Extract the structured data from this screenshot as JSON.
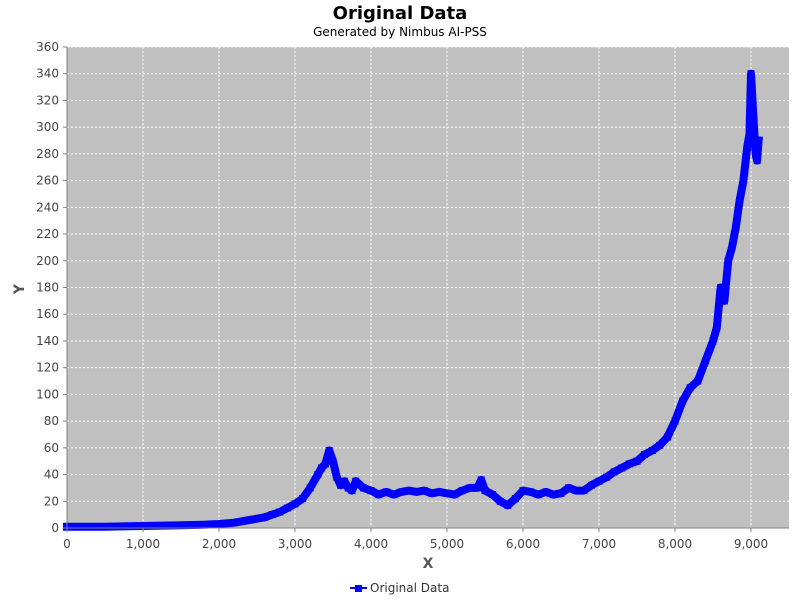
{
  "chart_data": {
    "type": "line",
    "title": "Original Data",
    "subtitle": "Generated by Nimbus AI-PSS",
    "xlabel": "X",
    "ylabel": "Y",
    "xlim": [
      0,
      9500
    ],
    "ylim": [
      0,
      360
    ],
    "x_ticks": [
      0,
      1000,
      2000,
      3000,
      4000,
      5000,
      6000,
      7000,
      8000,
      9000
    ],
    "x_tick_labels": [
      "0",
      "1,000",
      "2,000",
      "3,000",
      "4,000",
      "5,000",
      "6,000",
      "7,000",
      "8,000",
      "9,000"
    ],
    "y_ticks": [
      0,
      20,
      40,
      60,
      80,
      100,
      120,
      140,
      160,
      180,
      200,
      220,
      240,
      260,
      280,
      300,
      320,
      340,
      360
    ],
    "y_tick_labels": [
      "0",
      "20",
      "40",
      "60",
      "80",
      "100",
      "120",
      "140",
      "160",
      "180",
      "200",
      "220",
      "240",
      "260",
      "280",
      "300",
      "320",
      "340",
      "360"
    ],
    "grid": true,
    "legend_position": "bottom",
    "colors": {
      "series": "#0000ff",
      "plot_background": "#c0c0c0",
      "grid": "#ffffff"
    },
    "series": [
      {
        "name": "Original Data",
        "x": [
          0,
          500,
          1000,
          1500,
          1800,
          2000,
          2200,
          2400,
          2600,
          2700,
          2800,
          2900,
          3000,
          3100,
          3200,
          3300,
          3350,
          3400,
          3450,
          3500,
          3550,
          3600,
          3650,
          3700,
          3750,
          3800,
          3900,
          4000,
          4100,
          4200,
          4300,
          4400,
          4500,
          4600,
          4700,
          4800,
          4900,
          5000,
          5100,
          5200,
          5300,
          5400,
          5450,
          5500,
          5600,
          5700,
          5800,
          5900,
          6000,
          6100,
          6200,
          6300,
          6400,
          6500,
          6600,
          6700,
          6800,
          6900,
          7000,
          7100,
          7200,
          7300,
          7400,
          7500,
          7600,
          7700,
          7800,
          7900,
          8000,
          8100,
          8200,
          8300,
          8400,
          8500,
          8550,
          8600,
          8650,
          8700,
          8750,
          8800,
          8850,
          8900,
          8950,
          8980,
          9000,
          9020,
          9040,
          9060,
          9080,
          9100
        ],
        "y": [
          1,
          1,
          1.5,
          2,
          2.5,
          3,
          4,
          6,
          8,
          10,
          12,
          15,
          18,
          22,
          30,
          40,
          45,
          48,
          58,
          50,
          38,
          32,
          35,
          30,
          28,
          35,
          30,
          28,
          25,
          27,
          25,
          27,
          28,
          27,
          28,
          26,
          27,
          26,
          25,
          28,
          30,
          30,
          36,
          28,
          25,
          20,
          17,
          22,
          28,
          27,
          25,
          27,
          25,
          26,
          30,
          28,
          28,
          32,
          35,
          38,
          42,
          45,
          48,
          50,
          55,
          58,
          62,
          68,
          80,
          95,
          105,
          110,
          125,
          140,
          150,
          180,
          170,
          200,
          210,
          225,
          245,
          260,
          285,
          295,
          340,
          320,
          300,
          280,
          275,
          290
        ]
      }
    ]
  }
}
